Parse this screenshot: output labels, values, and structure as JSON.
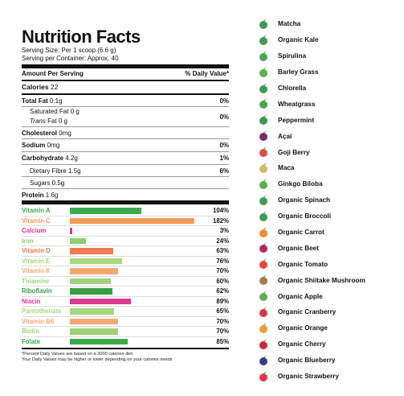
{
  "label": {
    "title": "Nutrition Facts",
    "serving_size": "Serving Size: Per 1 scoop (6.6 g)",
    "serving_per_container": "Serving per Container: Approx. 40",
    "amount_header": "Amount Per Serving",
    "dv_header": "% Daily Value*",
    "calories_label": "Calories",
    "calories_value": "22",
    "nutrients": [
      {
        "label": "Total Fat",
        "amount": "0.1g",
        "dv": "0%"
      },
      {
        "label": "Saturated Fat",
        "amount": "0 g",
        "dv": "0%"
      },
      {
        "label": "Trans",
        "label_suffix": "Fat 0 g"
      },
      {
        "label": "Cholesterol",
        "amount": "0mg"
      },
      {
        "label": "Sodium",
        "amount": "0mg",
        "dv": "0%"
      },
      {
        "label": "Carbohydrate",
        "amount": "4.2g",
        "dv": "1%"
      },
      {
        "label": "Dietary Fibre",
        "amount": "1.5g",
        "dv": "6%"
      },
      {
        "label": "Sugars",
        "amount": "0.5g"
      },
      {
        "label": "Protein",
        "amount": "1.6g"
      }
    ],
    "vitamins": [
      {
        "name": "Vitamin A",
        "pct": "104%",
        "value": 104,
        "color": "#3cab4b"
      },
      {
        "name": "Vitamin C",
        "pct": "182%",
        "value": 182,
        "color": "#f39a58"
      },
      {
        "name": "Calcium",
        "pct": "3%",
        "value": 3,
        "color": "#d6368e"
      },
      {
        "name": "Iron",
        "pct": "24%",
        "value": 24,
        "color": "#8fcf6b"
      },
      {
        "name": "Vitamin D",
        "pct": "63%",
        "value": 63,
        "color": "#ef7a51"
      },
      {
        "name": "Vitamin E",
        "pct": "76%",
        "value": 76,
        "color": "#a6d77a"
      },
      {
        "name": "Vitamin K",
        "pct": "70%",
        "value": 70,
        "color": "#f4a972"
      },
      {
        "name": "Thiamine",
        "pct": "60%",
        "value": 60,
        "color": "#a0d17c"
      },
      {
        "name": "Riboflavin",
        "pct": "62%",
        "value": 62,
        "color": "#3a9e47"
      },
      {
        "name": "Niacin",
        "pct": "89%",
        "value": 89,
        "color": "#d93b8f"
      },
      {
        "name": "Pantothenate",
        "pct": "65%",
        "value": 65,
        "color": "#a7d77c"
      },
      {
        "name": "Vitamin B6",
        "pct": "70%",
        "value": 70,
        "color": "#f4a972"
      },
      {
        "name": "Biotin",
        "pct": "70%",
        "value": 70,
        "color": "#9fd273"
      },
      {
        "name": "Folate",
        "pct": "85%",
        "value": 85,
        "color": "#3dab4b"
      }
    ],
    "footnote_1": "*Percent Daily Values are based on a 2000 calories diet.",
    "footnote_2": "Your Daily Values may be higher or lower depending on your calories needs"
  },
  "ingredients": [
    {
      "name": "Matcha",
      "icon": "matcha-icon",
      "color": "#3f9b4d"
    },
    {
      "name": "Organic Kale",
      "icon": "kale-icon",
      "color": "#3f9b4d"
    },
    {
      "name": "Spirulina",
      "icon": "spirulina-icon",
      "color": "#4aa653"
    },
    {
      "name": "Barley Grass",
      "icon": "barley-grass-icon",
      "color": "#5ab04f"
    },
    {
      "name": "Chlorella",
      "icon": "chlorella-icon",
      "color": "#3f9b4d"
    },
    {
      "name": "Wheatgrass",
      "icon": "wheatgrass-icon",
      "color": "#4aa653"
    },
    {
      "name": "Peppermint",
      "icon": "peppermint-icon",
      "color": "#3f9b4d"
    },
    {
      "name": "Açaí",
      "icon": "acai-icon",
      "color": "#7a2a6a"
    },
    {
      "name": "Goji Berry",
      "icon": "goji-berry-icon",
      "color": "#e04a4a"
    },
    {
      "name": "Maca",
      "icon": "maca-icon",
      "color": "#d8b86a"
    },
    {
      "name": "Ginkgo Biloba",
      "icon": "ginkgo-icon",
      "color": "#5ab04f"
    },
    {
      "name": "Organic Spinach",
      "icon": "spinach-icon",
      "color": "#3f9b4d"
    },
    {
      "name": "Organic Broccoli",
      "icon": "broccoli-icon",
      "color": "#3f9b4d"
    },
    {
      "name": "Organic Carrot",
      "icon": "carrot-icon",
      "color": "#f28c3a"
    },
    {
      "name": "Organic Beet",
      "icon": "beet-icon",
      "color": "#b2275e"
    },
    {
      "name": "Organic Tomato",
      "icon": "tomato-icon",
      "color": "#e84a3a"
    },
    {
      "name": "Organic Shiitake Mushroom",
      "icon": "mushroom-icon",
      "color": "#a87a4a"
    },
    {
      "name": "Organic Apple",
      "icon": "apple-icon",
      "color": "#5ab04f"
    },
    {
      "name": "Organic Cranberry",
      "icon": "cranberry-icon",
      "color": "#d6364a"
    },
    {
      "name": "Organic Orange",
      "icon": "orange-icon",
      "color": "#f39a3a"
    },
    {
      "name": "Organic Cherry",
      "icon": "cherry-icon",
      "color": "#c92a3a"
    },
    {
      "name": "Organic Blueberry",
      "icon": "blueberry-icon",
      "color": "#3a3a8a"
    },
    {
      "name": "Organic Strawberry",
      "icon": "strawberry-icon",
      "color": "#e0364a"
    }
  ]
}
